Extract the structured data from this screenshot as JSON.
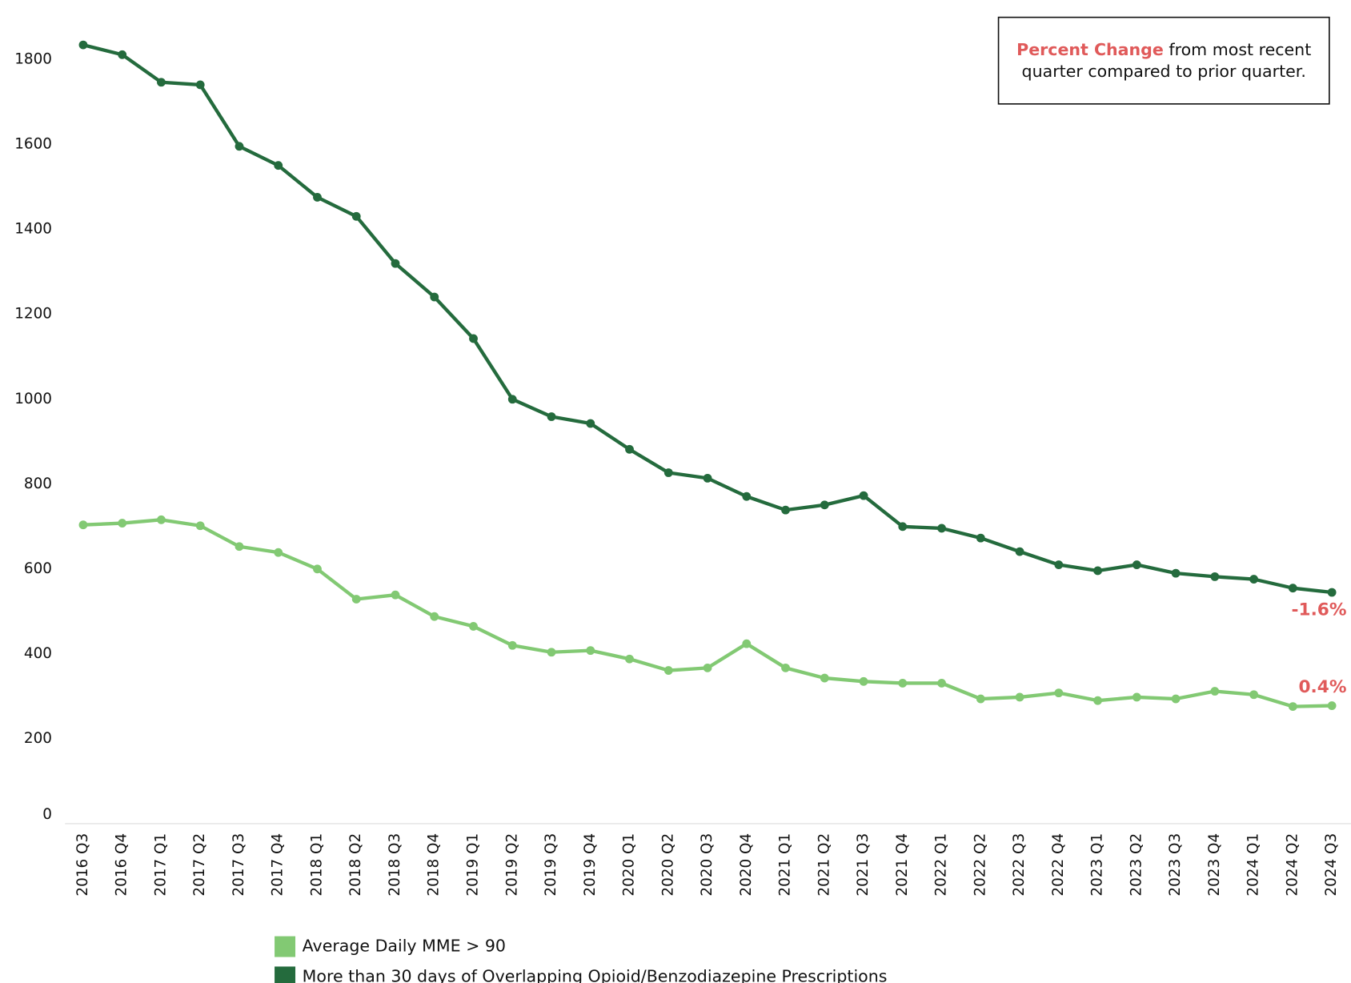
{
  "chart_data": {
    "type": "line",
    "categories": [
      "2016 Q3",
      "2016 Q4",
      "2017 Q1",
      "2017 Q2",
      "2017 Q3",
      "2017 Q4",
      "2018 Q1",
      "2018 Q2",
      "2018 Q3",
      "2018 Q4",
      "2019 Q1",
      "2019 Q2",
      "2019 Q3",
      "2019 Q4",
      "2020 Q1",
      "2020 Q2",
      "2020 Q3",
      "2020 Q4",
      "2021 Q1",
      "2021 Q2",
      "2021 Q3",
      "2021 Q4",
      "2022 Q1",
      "2022 Q2",
      "2022 Q3",
      "2022 Q4",
      "2023 Q1",
      "2023 Q2",
      "2023 Q3",
      "2023 Q4",
      "2024 Q1",
      "2024 Q2",
      "2024 Q3"
    ],
    "series": [
      {
        "name": "Average Daily MME > 90",
        "color": "#82c973",
        "change_label": "0.4%",
        "values": [
          704,
          708,
          716,
          702,
          653,
          639,
          600,
          529,
          539,
          488,
          465,
          420,
          404,
          408,
          388,
          361,
          367,
          424,
          367,
          343,
          335,
          331,
          331,
          294,
          298,
          308,
          290,
          298,
          294,
          312,
          304,
          276,
          278
        ]
      },
      {
        "name": "More than 30 days of Overlapping Opioid/Benzodiazepine Prescriptions",
        "color": "#246b3d",
        "change_label": "-1.6%",
        "values": [
          1835,
          1812,
          1747,
          1741,
          1596,
          1551,
          1476,
          1431,
          1320,
          1241,
          1143,
          1000,
          959,
          943,
          882,
          827,
          814,
          771,
          739,
          751,
          773,
          700,
          696,
          673,
          641,
          610,
          596,
          610,
          590,
          582,
          576,
          555,
          545
        ]
      }
    ],
    "ylim": [
      0,
      1900
    ],
    "yticks": [
      0,
      200,
      400,
      600,
      800,
      1000,
      1200,
      1400,
      1600,
      1800
    ],
    "grid": false,
    "annotation": {
      "highlight": "Percent Change",
      "lines": [
        "from most recent",
        "quarter compared to prior quarter."
      ],
      "highlight_color": "#e05a5a"
    }
  }
}
